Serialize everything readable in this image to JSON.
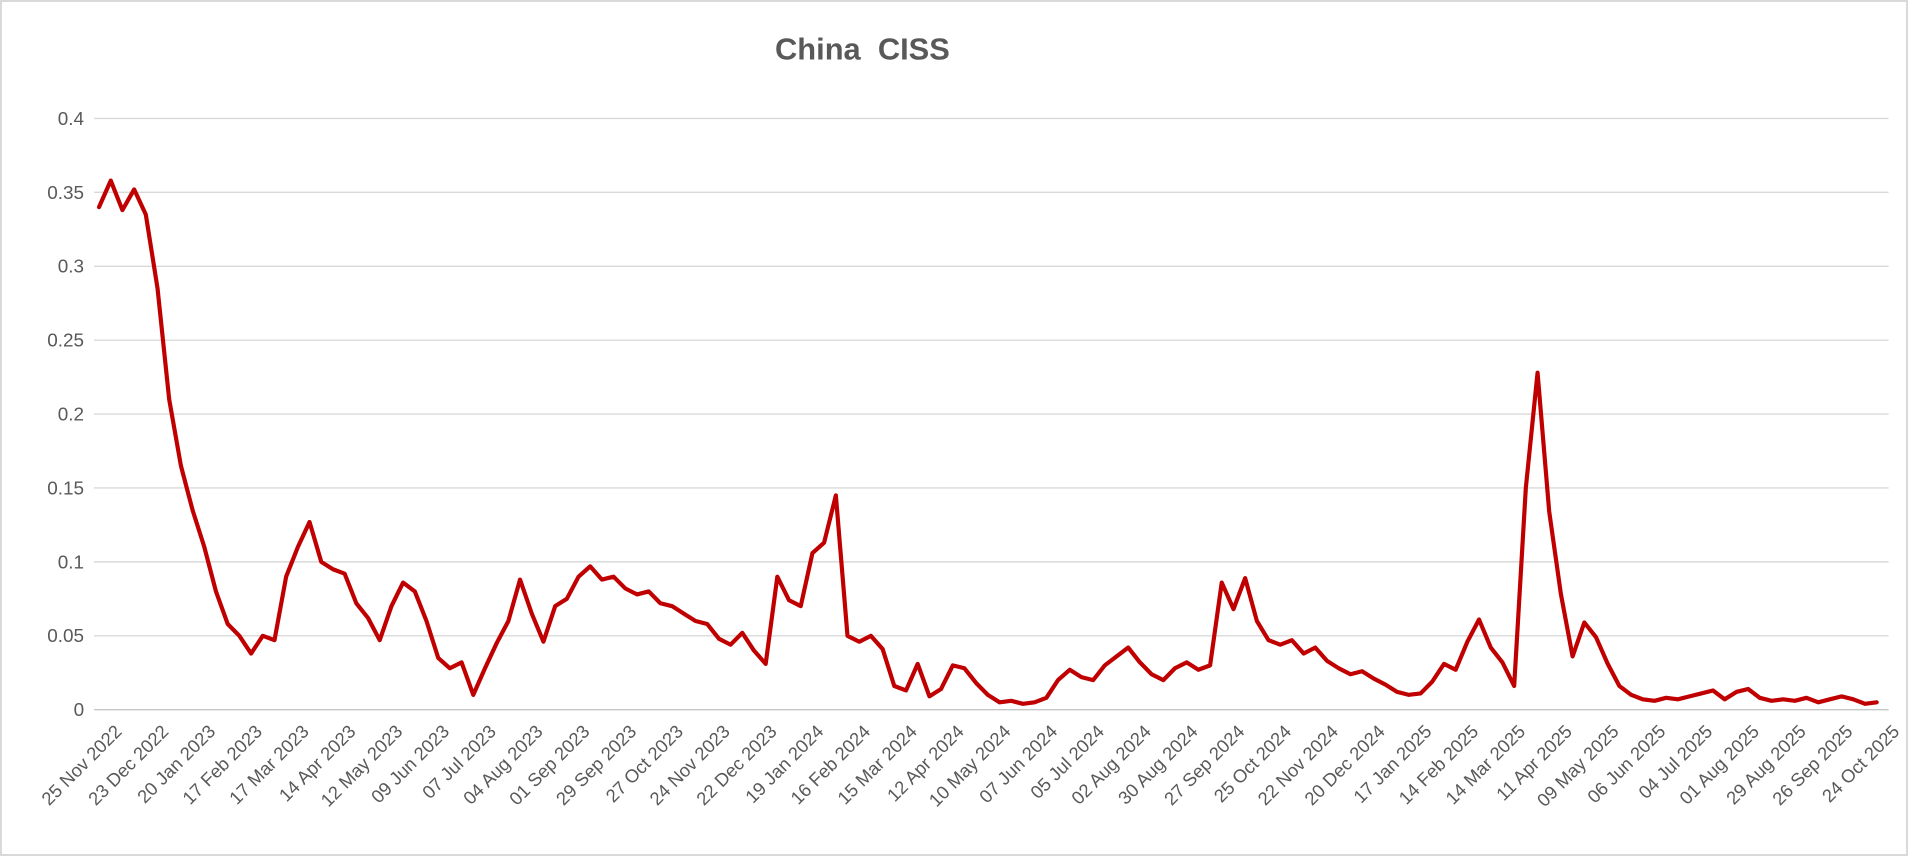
{
  "window": {
    "background": "#FFFFFF",
    "border_color": "#D9D9D9"
  },
  "chart_data": {
    "type": "line",
    "title": "China  CISS",
    "title_color": "#595959",
    "line_color": "#C00000",
    "line_width": 4.2,
    "grid": true,
    "legend": false,
    "gridline_color": "#D9D9D9",
    "axis_line_color": "#C6C6C6",
    "axis_label_color": "#595959",
    "ylim": [
      0,
      0.4
    ],
    "y_tick_labels": [
      "0",
      "0.05",
      "0.1",
      "0.15",
      "0.2",
      "0.25",
      "0.3",
      "0.35",
      "0.4"
    ],
    "x_tick_labels": [
      "25 Nov 2022",
      "23 Dec 2022",
      "20 Jan 2023",
      "17 Feb 2023",
      "17 Mar 2023",
      "14 Apr 2023",
      "12 May 2023",
      "09 Jun 2023",
      "07 Jul 2023",
      "04 Aug 2023",
      "01 Sep 2023",
      "29 Sep 2023",
      "27 Oct 2023",
      "24 Nov 2023",
      "22 Dec 2023",
      "19 Jan 2024",
      "16 Feb 2024",
      "15 Mar 2024",
      "12 Apr 2024",
      "10 May 2024",
      "07 Jun 2024",
      "05 Jul 2024",
      "02 Aug 2024",
      "30 Aug 2024",
      "27 Sep 2024",
      "25 Oct 2024",
      "22 Nov 2024",
      "20 Dec 2024",
      "17 Jan 2025",
      "14 Feb 2025",
      "14 Mar 2025",
      "11 Apr 2025",
      "09 May 2025",
      "06 Jun 2025",
      "04 Jul 2025",
      "01 Aug 2025",
      "29 Aug 2025",
      "26 Sep 2025",
      "24 Oct 2025"
    ],
    "x_sampling": "weekly, 4 samples per labeled tick (ticks every 28 days)",
    "series": [
      {
        "name": "China CISS",
        "values": [
          0.34,
          0.358,
          0.338,
          0.352,
          0.335,
          0.285,
          0.21,
          0.165,
          0.135,
          0.11,
          0.08,
          0.058,
          0.05,
          0.038,
          0.05,
          0.047,
          0.09,
          0.11,
          0.127,
          0.1,
          0.095,
          0.092,
          0.072,
          0.062,
          0.047,
          0.07,
          0.086,
          0.08,
          0.06,
          0.035,
          0.028,
          0.032,
          0.01,
          0.028,
          0.045,
          0.06,
          0.088,
          0.065,
          0.046,
          0.07,
          0.075,
          0.09,
          0.097,
          0.088,
          0.09,
          0.082,
          0.078,
          0.08,
          0.072,
          0.07,
          0.065,
          0.06,
          0.058,
          0.048,
          0.044,
          0.052,
          0.04,
          0.031,
          0.09,
          0.074,
          0.07,
          0.106,
          0.113,
          0.145,
          0.05,
          0.046,
          0.05,
          0.041,
          0.016,
          0.013,
          0.031,
          0.009,
          0.014,
          0.03,
          0.028,
          0.018,
          0.01,
          0.005,
          0.006,
          0.004,
          0.005,
          0.008,
          0.02,
          0.027,
          0.022,
          0.02,
          0.03,
          0.036,
          0.042,
          0.032,
          0.024,
          0.02,
          0.028,
          0.032,
          0.027,
          0.03,
          0.086,
          0.068,
          0.089,
          0.06,
          0.047,
          0.044,
          0.047,
          0.038,
          0.042,
          0.033,
          0.028,
          0.024,
          0.026,
          0.021,
          0.017,
          0.012,
          0.01,
          0.011,
          0.019,
          0.031,
          0.027,
          0.046,
          0.061,
          0.042,
          0.032,
          0.016,
          0.15,
          0.228,
          0.134,
          0.078,
          0.036,
          0.059,
          0.049,
          0.031,
          0.016,
          0.01,
          0.007,
          0.006,
          0.008,
          0.007,
          0.009,
          0.011,
          0.013,
          0.007,
          0.012,
          0.014,
          0.008,
          0.006,
          0.007,
          0.006,
          0.008,
          0.005,
          0.007,
          0.009,
          0.007,
          0.004,
          0.005
        ]
      }
    ]
  }
}
